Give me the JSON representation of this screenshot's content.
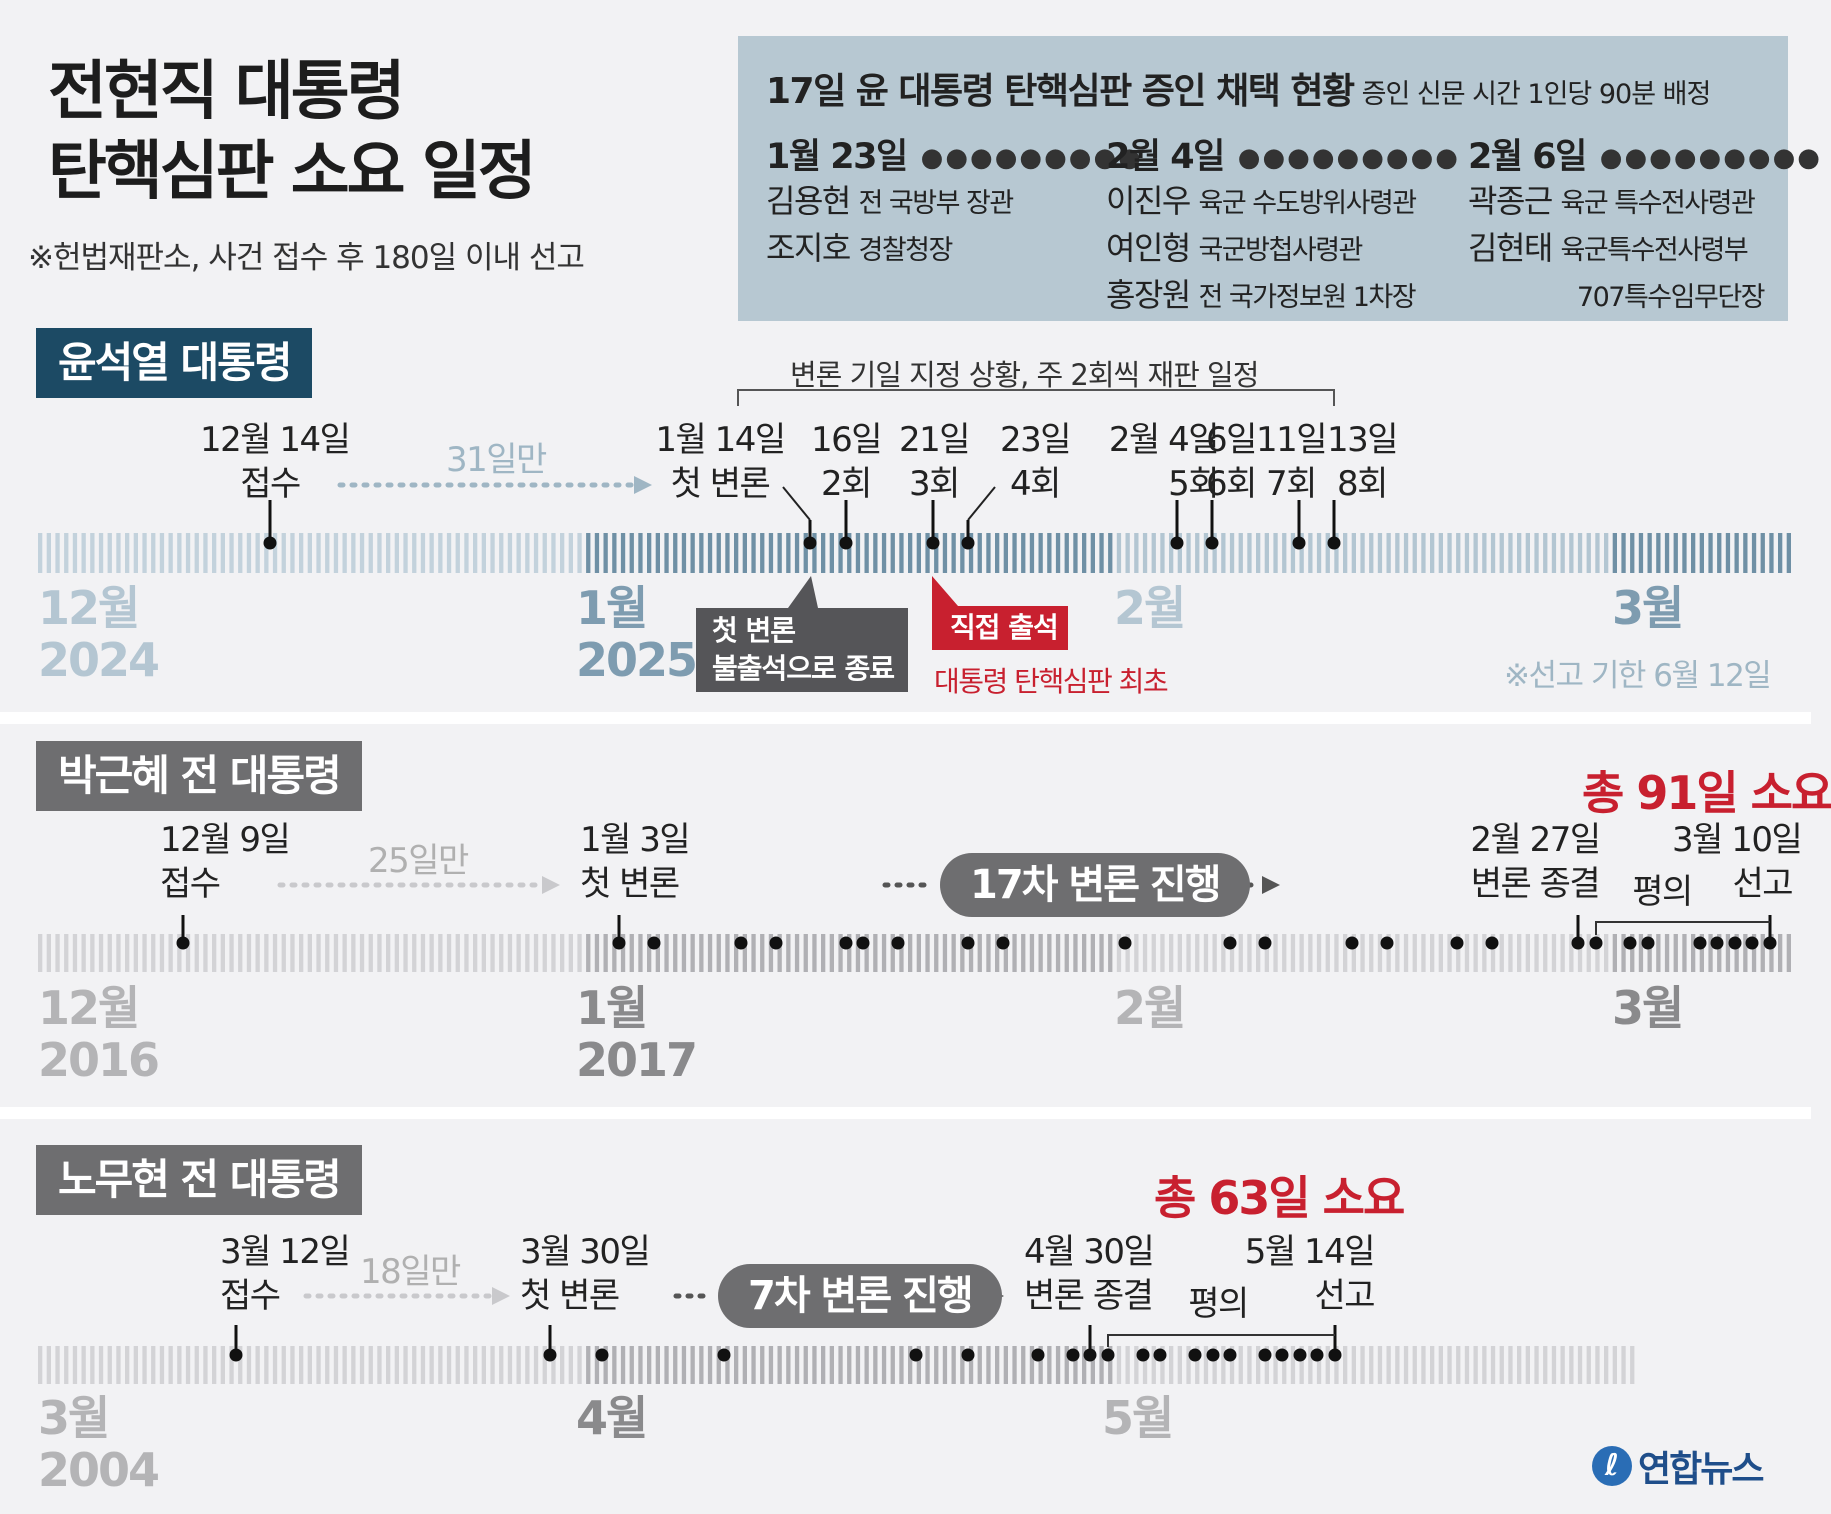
{
  "title": {
    "line1": "전현직 대통령",
    "line2": "탄핵심판 소요 일정"
  },
  "subnote": "※헌법재판소, 사건 접수 후 180일 이내 선고",
  "witness": {
    "title": "17일 윤 대통령 탄핵심판 증인 채택 현황",
    "note": "증인 신문 시간 1인당 90분 배정",
    "columns": [
      {
        "date": "1월 23일",
        "people": [
          {
            "name": "김용현",
            "role": "전 국방부 장관"
          },
          {
            "name": "조지호",
            "role": "경찰청장"
          }
        ]
      },
      {
        "date": "2월 4일",
        "people": [
          {
            "name": "이진우",
            "role": "육군 수도방위사령관"
          },
          {
            "name": "여인형",
            "role": "국군방첩사령관"
          },
          {
            "name": "홍장원",
            "role": "전 국가정보원 1차장"
          }
        ]
      },
      {
        "date": "2월 6일",
        "people": [
          {
            "name": "곽종근",
            "role": "육군 특수전사령관"
          },
          {
            "name": "김현태",
            "role": "육군특수전사령부"
          }
        ],
        "extra": "707특수임무단장"
      }
    ]
  },
  "colors": {
    "yoon_label": "#1c4a64",
    "gray_label": "#6e6e70",
    "accent_red": "#c8202f",
    "stripe_blue": "#9fb6c4",
    "stripe_gray": "#c9c9cc"
  },
  "yoon": {
    "label": "윤석열 대통령",
    "bracket_note": "변론 기일 지정 상황, 주 2회씩 재판 일정",
    "receipt": {
      "date": "12월 14일",
      "text": "접수"
    },
    "gap": "31일만",
    "events": [
      {
        "date": "1월 14일",
        "text": "첫 변론"
      },
      {
        "date": "16일",
        "text": "2회"
      },
      {
        "date": "21일",
        "text": "3회"
      },
      {
        "date": "23일",
        "text": "4회"
      },
      {
        "date": "2월 4일",
        "text": "5회"
      },
      {
        "date": "6일",
        "text": "6회"
      },
      {
        "date": "11일",
        "text": "7회"
      },
      {
        "date": "13일",
        "text": "8회"
      }
    ],
    "callout_gray": {
      "line1": "첫 변론",
      "line2": "불출석으로 종료"
    },
    "callout_red": "직접 출석",
    "callout_red_note": "대통령 탄핵심판 최초",
    "months": [
      {
        "m": "12월",
        "y": "2024"
      },
      {
        "m": "1월",
        "y": "2025"
      },
      {
        "m": "2월",
        "y": ""
      },
      {
        "m": "3월",
        "y": ""
      }
    ],
    "deadline": "※선고 기한 6월 12일"
  },
  "park": {
    "label": "박근혜 전 대통령",
    "total": "총 91일 소요",
    "receipt": {
      "date": "12월 9일",
      "text": "접수"
    },
    "gap": "25일만",
    "first": {
      "date": "1월 3일",
      "text": "첫 변론"
    },
    "pill": "17차 변론 진행",
    "end": {
      "date": "2월 27일",
      "text": "변론 종결"
    },
    "deliberation": "평의",
    "verdict": {
      "date": "3월 10일",
      "text": "선고"
    },
    "months": [
      {
        "m": "12월",
        "y": "2016"
      },
      {
        "m": "1월",
        "y": "2017"
      },
      {
        "m": "2월",
        "y": ""
      },
      {
        "m": "3월",
        "y": ""
      }
    ]
  },
  "roh": {
    "label": "노무현 전 대통령",
    "total": "총 63일 소요",
    "receipt": {
      "date": "3월 12일",
      "text": "접수"
    },
    "gap": "18일만",
    "first": {
      "date": "3월 30일",
      "text": "첫 변론"
    },
    "pill": "7차 변론 진행",
    "end": {
      "date": "4월 30일",
      "text": "변론 종결"
    },
    "deliberation": "평의",
    "verdict": {
      "date": "5월 14일",
      "text": "선고"
    },
    "months": [
      {
        "m": "3월",
        "y": "2004"
      },
      {
        "m": "4월",
        "y": ""
      },
      {
        "m": "5월",
        "y": ""
      }
    ]
  },
  "logo": "연합뉴스"
}
